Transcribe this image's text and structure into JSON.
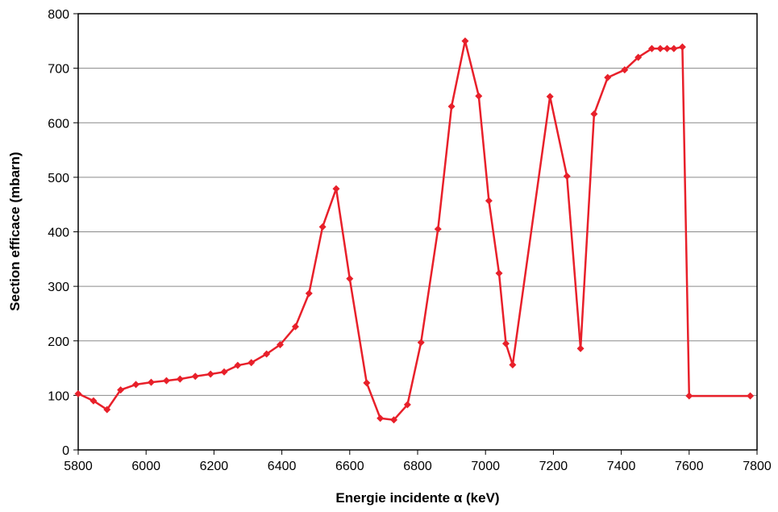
{
  "chart_data": {
    "type": "line",
    "title": "",
    "xlabel": "Energie incidente α (keV)",
    "ylabel": "Section efficace (mbarn)",
    "xlim": [
      5800,
      7800
    ],
    "ylim": [
      0,
      800
    ],
    "x_ticks": [
      5800,
      6000,
      6200,
      6400,
      6600,
      6800,
      7000,
      7200,
      7400,
      7600,
      7800
    ],
    "y_ticks": [
      0,
      100,
      200,
      300,
      400,
      500,
      600,
      700,
      800
    ],
    "grid": "horizontal",
    "legend": "none",
    "series": [
      {
        "color": "#e8202a",
        "marker": "diamond",
        "points": [
          [
            5800,
            103
          ],
          [
            5845,
            90
          ],
          [
            5885,
            74
          ],
          [
            5925,
            110
          ],
          [
            5970,
            120
          ],
          [
            6015,
            124
          ],
          [
            6060,
            127
          ],
          [
            6100,
            130
          ],
          [
            6145,
            135
          ],
          [
            6190,
            139
          ],
          [
            6230,
            143
          ],
          [
            6270,
            155
          ],
          [
            6310,
            160
          ],
          [
            6355,
            176
          ],
          [
            6395,
            193
          ],
          [
            6440,
            226
          ],
          [
            6480,
            287
          ],
          [
            6520,
            409
          ],
          [
            6560,
            479
          ],
          [
            6600,
            314
          ],
          [
            6650,
            123
          ],
          [
            6690,
            58
          ],
          [
            6730,
            55
          ],
          [
            6770,
            83
          ],
          [
            6810,
            197
          ],
          [
            6860,
            405
          ],
          [
            6900,
            630
          ],
          [
            6940,
            750
          ],
          [
            6980,
            649
          ],
          [
            7010,
            457
          ],
          [
            7040,
            324
          ],
          [
            7060,
            195
          ],
          [
            7080,
            156
          ],
          [
            7190,
            648
          ],
          [
            7240,
            502
          ],
          [
            7280,
            186
          ],
          [
            7320,
            616
          ],
          [
            7360,
            683
          ],
          [
            7410,
            697
          ],
          [
            7450,
            720
          ],
          [
            7490,
            736
          ],
          [
            7515,
            736
          ],
          [
            7535,
            736
          ],
          [
            7555,
            736
          ],
          [
            7580,
            739
          ],
          [
            7600,
            99
          ],
          [
            7780,
            99
          ]
        ]
      }
    ]
  }
}
